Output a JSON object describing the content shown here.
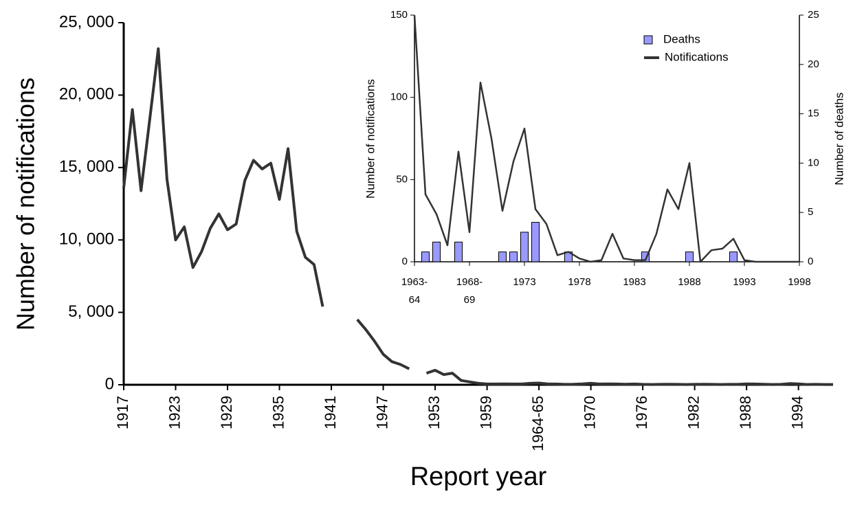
{
  "chart_data": [
    {
      "type": "line",
      "x_label": "Report year",
      "y_label": "Number of notifications",
      "categories": [
        "1917",
        null,
        null,
        null,
        null,
        null,
        "1923",
        null,
        null,
        null,
        null,
        null,
        "1929",
        null,
        null,
        null,
        null,
        null,
        "1935",
        null,
        null,
        null,
        null,
        null,
        "1941",
        null,
        null,
        null,
        null,
        null,
        "1947",
        null,
        null,
        null,
        null,
        null,
        "1953",
        null,
        null,
        null,
        null,
        null,
        "1959",
        null,
        null,
        null,
        null,
        null,
        "1964-65",
        null,
        null,
        null,
        null,
        null,
        "1970",
        null,
        null,
        null,
        null,
        null,
        "1976",
        null,
        null,
        null,
        null,
        null,
        "1982",
        null,
        null,
        null,
        null,
        null,
        "1988",
        null,
        null,
        null,
        null,
        null,
        "1994",
        null,
        null,
        null,
        null
      ],
      "series": [
        {
          "name": "Notifications",
          "color": "#333333",
          "values": [
            13600,
            19000,
            13400,
            18300,
            23200,
            14200,
            10000,
            10900,
            8100,
            9200,
            10800,
            11800,
            10700,
            11100,
            14100,
            15500,
            14900,
            15300,
            12800,
            16300,
            10600,
            8800,
            8300,
            5400,
            null,
            null,
            null,
            4500,
            3800,
            3000,
            2100,
            1600,
            1400,
            1100,
            null,
            800,
            1000,
            700,
            800,
            300,
            200,
            100,
            50,
            50,
            60,
            50,
            50,
            100,
            120,
            60,
            50,
            30,
            40,
            60,
            100,
            50,
            60,
            50,
            40,
            50,
            30,
            20,
            30,
            40,
            30,
            20,
            30,
            40,
            30,
            20,
            30,
            30,
            60,
            50,
            40,
            20,
            30,
            80,
            60,
            20,
            30,
            20,
            20
          ]
        }
      ],
      "ylim": [
        0,
        25000
      ],
      "yticks": [
        0,
        {
          "value": 5000,
          "label": "5, 000"
        },
        {
          "value": 10000,
          "label": "10, 000"
        },
        {
          "value": 15000,
          "label": "15, 000"
        },
        {
          "value": 20000,
          "label": "20, 000"
        },
        {
          "value": 25000,
          "label": "25, 000"
        }
      ]
    },
    {
      "type": "combo",
      "y_label": "Number of notifications",
      "y2_label": "Number of deaths",
      "categories": [
        "1963-64",
        null,
        null,
        null,
        null,
        "1968-69",
        null,
        null,
        null,
        null,
        "1973",
        null,
        null,
        null,
        null,
        "1978",
        null,
        null,
        null,
        null,
        "1983",
        null,
        null,
        null,
        null,
        "1988",
        null,
        null,
        null,
        null,
        "1993",
        null,
        null,
        null,
        null,
        "1998"
      ],
      "series": [
        {
          "name": "Deaths",
          "type": "bar",
          "axis": "y2",
          "color": "#9999ff",
          "values": [
            0,
            1,
            2,
            0,
            2,
            0,
            0,
            0,
            1,
            1,
            3,
            4,
            0,
            0,
            1,
            0,
            0,
            0,
            0,
            0,
            0,
            1,
            0,
            0,
            0,
            1,
            0,
            0,
            0,
            1,
            0,
            0,
            0,
            0,
            0,
            0
          ]
        },
        {
          "name": "Notifications",
          "type": "line",
          "color": "#333333",
          "values": [
            150,
            41,
            29,
            10,
            67,
            18,
            109,
            75,
            31,
            61,
            81,
            32,
            23,
            4,
            6,
            2,
            0,
            1,
            17,
            2,
            1,
            1,
            17,
            44,
            32,
            60,
            0,
            7,
            8,
            14,
            1,
            0,
            0,
            0,
            0,
            0
          ]
        }
      ],
      "ylim": [
        0,
        150
      ],
      "yticks": [
        0,
        50,
        100,
        150
      ],
      "y2lim": [
        0,
        25
      ],
      "y2ticks": [
        0,
        5,
        10,
        15,
        20,
        25
      ],
      "legend": "upper right"
    }
  ]
}
